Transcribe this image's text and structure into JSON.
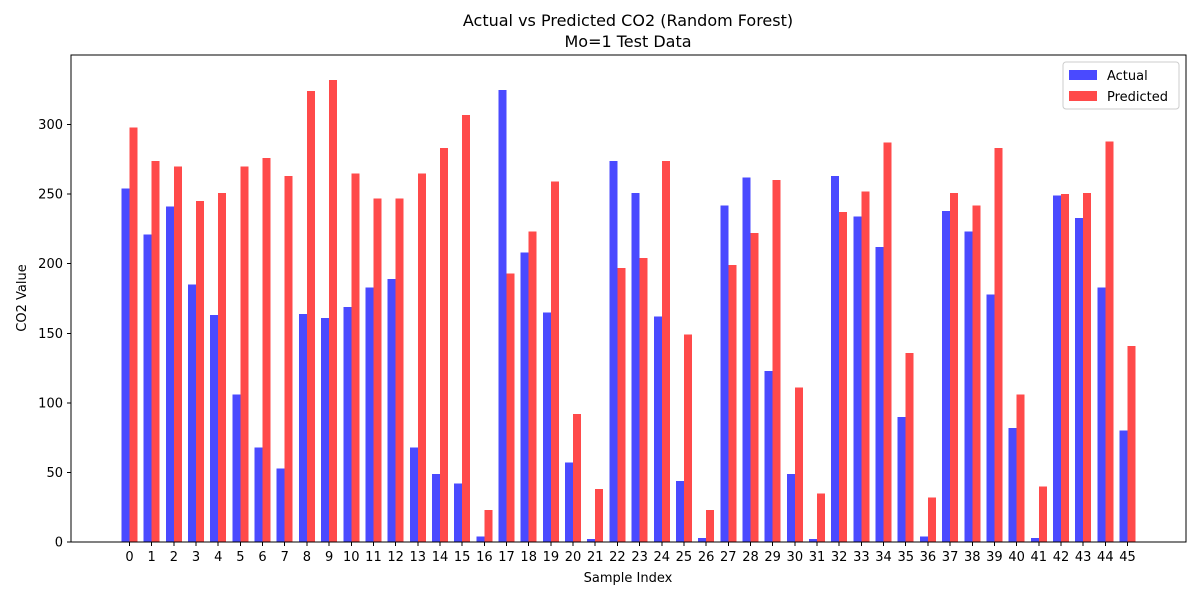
{
  "chart_data": {
    "type": "bar",
    "title": "Actual vs Predicted CO2 (Random Forest)",
    "subtitle": "Mo=1 Test Data",
    "xlabel": "Sample Index",
    "ylabel": "CO2 Value",
    "ylim": [
      0,
      350
    ],
    "yticks": [
      0,
      50,
      100,
      150,
      200,
      250,
      300
    ],
    "categories": [
      "0",
      "1",
      "2",
      "3",
      "4",
      "5",
      "6",
      "7",
      "8",
      "9",
      "10",
      "11",
      "12",
      "13",
      "14",
      "15",
      "16",
      "17",
      "18",
      "19",
      "20",
      "21",
      "22",
      "23",
      "24",
      "25",
      "26",
      "27",
      "28",
      "29",
      "30",
      "31",
      "32",
      "33",
      "34",
      "35",
      "36",
      "37",
      "38",
      "39",
      "40",
      "41",
      "42",
      "43",
      "44",
      "45"
    ],
    "series": [
      {
        "name": "Actual",
        "color": "#4a4aff",
        "values": [
          254,
          221,
          241,
          185,
          163,
          106,
          68,
          53,
          164,
          161,
          169,
          183,
          189,
          68,
          49,
          42,
          4,
          325,
          208,
          165,
          57,
          2,
          274,
          251,
          162,
          44,
          3,
          242,
          262,
          123,
          49,
          2,
          263,
          234,
          212,
          90,
          4,
          238,
          223,
          178,
          82,
          3,
          249,
          233,
          183,
          80
        ]
      },
      {
        "name": "Predicted",
        "color": "#ff4a4a",
        "values": [
          298,
          274,
          270,
          245,
          251,
          270,
          276,
          263,
          324,
          332,
          265,
          247,
          247,
          265,
          283,
          307,
          23,
          193,
          223,
          259,
          92,
          38,
          197,
          204,
          274,
          149,
          23,
          199,
          222,
          260,
          111,
          35,
          237,
          252,
          287,
          136,
          32,
          251,
          242,
          283,
          106,
          40,
          250,
          251,
          288,
          141
        ]
      }
    ],
    "legend": {
      "position": "top-right",
      "entries": [
        "Actual",
        "Predicted"
      ]
    },
    "grid": false
  }
}
